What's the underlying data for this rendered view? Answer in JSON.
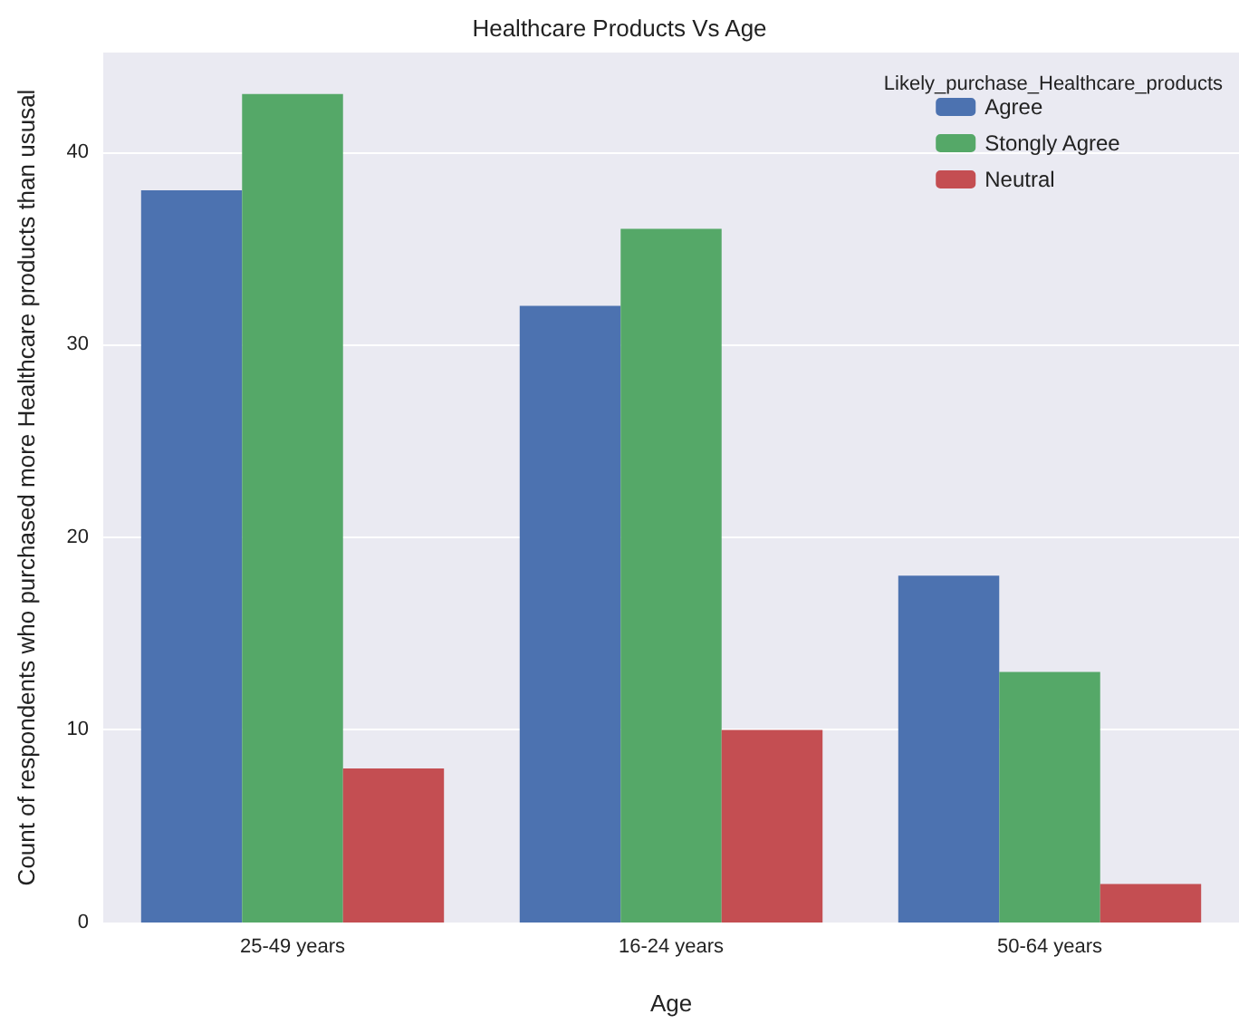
{
  "chart_data": {
    "type": "bar",
    "title": "Healthcare Products Vs Age",
    "xlabel": "Age",
    "ylabel": "Count of respondents who purchased more Healthcare products than ususal",
    "legend_title": "Likely_purchase_Healthcare_products",
    "categories": [
      "25-49 years",
      "16-24 years",
      "50-64 years"
    ],
    "series": [
      {
        "name": "Agree",
        "color": "#4c72b0",
        "values": [
          38,
          32,
          18
        ]
      },
      {
        "name": "Stongly Agree",
        "color": "#55a868",
        "values": [
          43,
          36,
          13
        ]
      },
      {
        "name": "Neutral",
        "color": "#c44e52",
        "values": [
          8,
          10,
          2
        ]
      }
    ],
    "ylim": [
      0,
      45.15
    ],
    "yticks": [
      0,
      10,
      20,
      30,
      40
    ],
    "grid": "y",
    "legend": "top right"
  }
}
